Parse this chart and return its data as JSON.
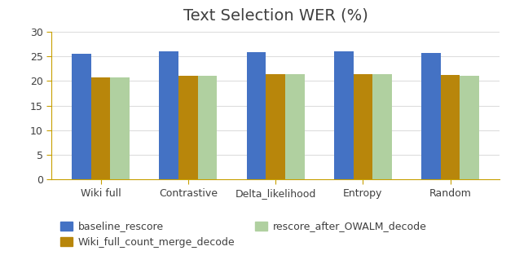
{
  "title": "Text Selection WER (%)",
  "categories": [
    "Wiki full",
    "Contrastive",
    "Delta_likelihood",
    "Entropy",
    "Random"
  ],
  "series": {
    "baseline_rescore": [
      25.5,
      26.0,
      25.8,
      26.0,
      25.7
    ],
    "Wiki_full_count_merge_decode": [
      20.8,
      21.0,
      21.4,
      21.4,
      21.2
    ],
    "rescore_after_OWALM_decode": [
      20.7,
      21.0,
      21.3,
      21.3,
      21.1
    ]
  },
  "colors": {
    "baseline_rescore": "#4472C4",
    "Wiki_full_count_merge_decode": "#B8860B",
    "rescore_after_OWALM_decode": "#B0D0A0"
  },
  "axis_color": "#C8A000",
  "ylim": [
    0,
    30
  ],
  "yticks": [
    0,
    5,
    10,
    15,
    20,
    25,
    30
  ],
  "bar_width": 0.22,
  "title_fontsize": 14,
  "legend_fontsize": 9,
  "tick_fontsize": 9,
  "background_color": "#FFFFFF",
  "grid_color": "#DDDDDD",
  "title_color": "#404040"
}
